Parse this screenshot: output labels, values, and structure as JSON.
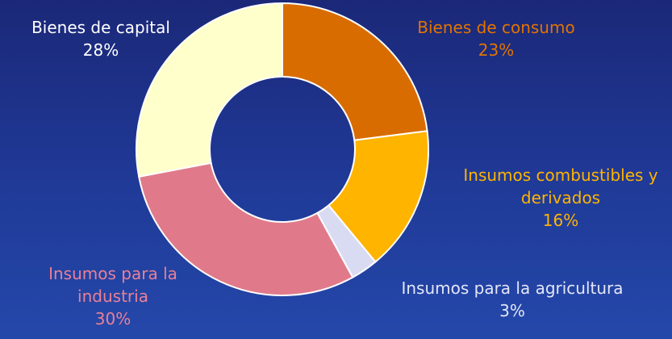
{
  "chart_data": {
    "type": "donut",
    "categories": [
      "Bienes de consumo",
      "Insumos combustibles y derivados",
      "Insumos para la agricultura",
      "Insumos para la industria",
      "Bienes de capital"
    ],
    "values": [
      23,
      16,
      3,
      30,
      28
    ],
    "value_labels": [
      "23%",
      "16%",
      "3%",
      "30%",
      "28%"
    ],
    "colors": [
      "#d96c00",
      "#ffb400",
      "#d9dbf3",
      "#e07a8a",
      "#ffffcc"
    ]
  }
}
